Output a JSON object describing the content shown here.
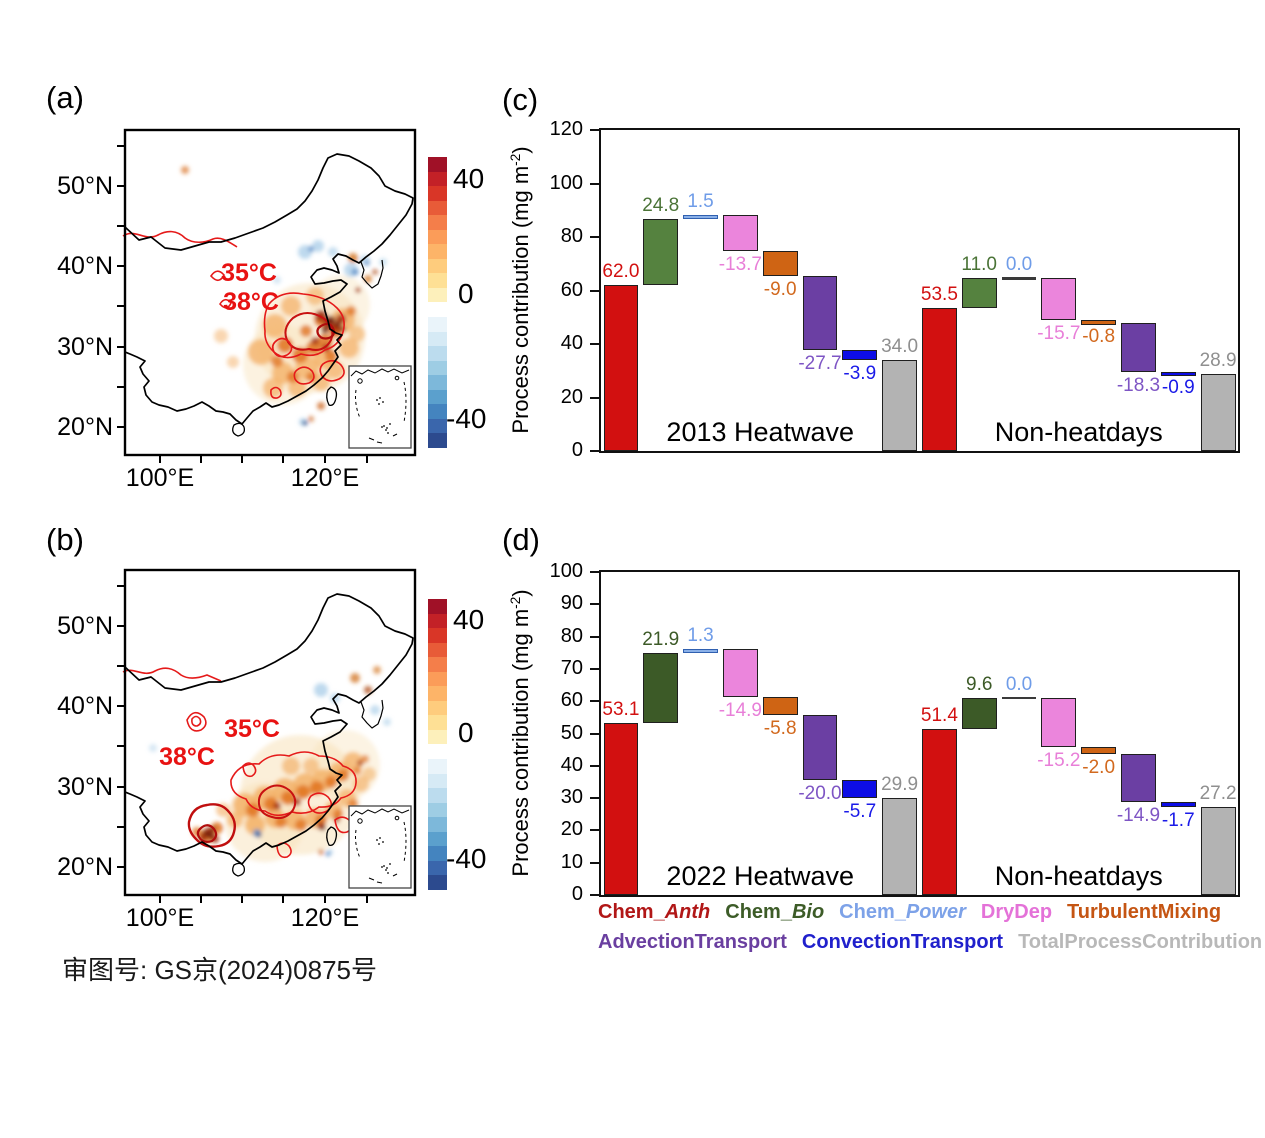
{
  "maps": {
    "a": {
      "panel_label": "(a)",
      "lat_labels": [
        "50°N",
        "40°N",
        "30°N",
        "20°N"
      ],
      "lon_labels": [
        "100°E",
        "120°E"
      ],
      "contour_labels": {
        "c35": "35°C",
        "c38": "38°C"
      },
      "colorbar": {
        "max": "40",
        "zero": "0",
        "min": "-40"
      }
    },
    "b": {
      "panel_label": "(b)",
      "lat_labels": [
        "50°N",
        "40°N",
        "30°N",
        "20°N"
      ],
      "lon_labels": [
        "100°E",
        "120°E"
      ],
      "contour_labels": {
        "c35": "35°C",
        "c38": "38°C"
      },
      "colorbar": {
        "max": "40",
        "zero": "0",
        "min": "-40"
      }
    }
  },
  "colorbar_colors": [
    "#a01127",
    "#c32127",
    "#d93627",
    "#e85b38",
    "#f47e4a",
    "#fb9c59",
    "#fdb468",
    "#fecc7d",
    "#fee095",
    "#fdf0bb",
    "#ffffff",
    "#eaf4fa",
    "#d6eaf5",
    "#bcdcee",
    "#9ecde4",
    "#7db8da",
    "#5ba0cd",
    "#4484bf",
    "#3a66ac",
    "#2c4a8e"
  ],
  "chart_data": [
    {
      "type": "waterfall-bar",
      "panel_label": "(c)",
      "ylabel": "Process contribution (mg m-2)",
      "ylabel_pre": "Process contribution (mg m",
      "ylabel_sup": "-2",
      "ylabel_post": ")",
      "ylim": [
        0,
        120
      ],
      "ytick_step": 20,
      "legend_position": "bottom",
      "groups": [
        {
          "label": "2013 Heatwave",
          "items": [
            {
              "name": "Chem_Anth",
              "label": "62.0",
              "value": 62.0,
              "kind": "start",
              "fill": "#d21010",
              "border": "#1f1f1f",
              "label_color": "#d21010"
            },
            {
              "name": "Chem_Bio",
              "label": "24.8",
              "value": 24.8,
              "kind": "delta",
              "fill": "#55823f",
              "border": "#1f1f1f",
              "label_color": "#4a7336"
            },
            {
              "name": "Chem_Power",
              "label": "1.5",
              "value": 1.5,
              "kind": "delta",
              "fill": "#8ab0e8",
              "border": "#3060b0",
              "label_color": "#6f9ce8"
            },
            {
              "name": "DryDep",
              "label": "-13.7",
              "value": -13.7,
              "kind": "delta",
              "fill": "#eb85dc",
              "border": "#1f1f1f",
              "label_color": "#e87fd8"
            },
            {
              "name": "TurbulentMixing",
              "label": "-9.0",
              "value": -9.0,
              "kind": "delta",
              "fill": "#cf6414",
              "border": "#1f1f1f",
              "label_color": "#d2691e"
            },
            {
              "name": "AdvectionTransport",
              "label": "-27.7",
              "value": -27.7,
              "kind": "delta",
              "fill": "#6b3fa3",
              "border": "#1f1f1f",
              "label_color": "#7e55c4"
            },
            {
              "name": "ConvectionTransport",
              "label": "-3.9",
              "value": -3.9,
              "kind": "delta",
              "fill": "#0d0de6",
              "border": "#1f1f1f",
              "label_color": "#1a1ae8"
            },
            {
              "name": "TotalProcessContribution",
              "label": "34.0",
              "value": 34.0,
              "kind": "total",
              "fill": "#b3b3b3",
              "border": "#1f1f1f",
              "label_color": "#8f8f8f"
            }
          ]
        },
        {
          "label": "Non-heatdays",
          "items": [
            {
              "name": "Chem_Anth",
              "label": "53.5",
              "value": 53.5,
              "kind": "start",
              "fill": "#d21010",
              "border": "#1f1f1f",
              "label_color": "#d21010"
            },
            {
              "name": "Chem_Bio",
              "label": "11.0",
              "value": 11.0,
              "kind": "delta",
              "fill": "#55823f",
              "border": "#1f1f1f",
              "label_color": "#4a7336"
            },
            {
              "name": "Chem_Power",
              "label": "0.0",
              "value": 0.0,
              "kind": "delta",
              "fill": "#8ab0e8",
              "border": "#3060b0",
              "label_color": "#6f9ce8"
            },
            {
              "name": "DryDep",
              "label": "-15.7",
              "value": -15.7,
              "kind": "delta",
              "fill": "#eb85dc",
              "border": "#1f1f1f",
              "label_color": "#e87fd8"
            },
            {
              "name": "TurbulentMixing",
              "label": "-0.8",
              "value": -0.8,
              "kind": "delta",
              "fill": "#cf6414",
              "border": "#1f1f1f",
              "label_color": "#d2691e"
            },
            {
              "name": "AdvectionTransport",
              "label": "-18.3",
              "value": -18.3,
              "kind": "delta",
              "fill": "#6b3fa3",
              "border": "#1f1f1f",
              "label_color": "#7e55c4"
            },
            {
              "name": "ConvectionTransport",
              "label": "-0.9",
              "value": -0.9,
              "kind": "delta",
              "fill": "#0d0de6",
              "border": "#1f1f1f",
              "label_color": "#1a1ae8"
            },
            {
              "name": "TotalProcessContribution",
              "label": "28.9",
              "value": 28.9,
              "kind": "total",
              "fill": "#b3b3b3",
              "border": "#1f1f1f",
              "label_color": "#8f8f8f"
            }
          ]
        }
      ]
    },
    {
      "type": "waterfall-bar",
      "panel_label": "(d)",
      "ylabel": "Process contribution (mg m-2)",
      "ylabel_pre": "Process contribution (mg m",
      "ylabel_sup": "-2",
      "ylabel_post": ")",
      "ylim": [
        0,
        100
      ],
      "ytick_step": 10,
      "legend_position": "bottom",
      "groups": [
        {
          "label": "2022 Heatwave",
          "items": [
            {
              "name": "Chem_Anth",
              "label": "53.1",
              "value": 53.1,
              "kind": "start",
              "fill": "#d21010",
              "border": "#1f1f1f",
              "label_color": "#d21010"
            },
            {
              "name": "Chem_Bio",
              "label": "21.9",
              "value": 21.9,
              "kind": "delta",
              "fill": "#3c5a27",
              "border": "#1f1f1f",
              "label_color": "#3c5a27"
            },
            {
              "name": "Chem_Power",
              "label": "1.3",
              "value": 1.3,
              "kind": "delta",
              "fill": "#8ab0e8",
              "border": "#3060b0",
              "label_color": "#6f9ce8"
            },
            {
              "name": "DryDep",
              "label": "-14.9",
              "value": -14.9,
              "kind": "delta",
              "fill": "#eb85dc",
              "border": "#1f1f1f",
              "label_color": "#e87fd8"
            },
            {
              "name": "TurbulentMixing",
              "label": "-5.8",
              "value": -5.8,
              "kind": "delta",
              "fill": "#cf6414",
              "border": "#1f1f1f",
              "label_color": "#d2691e"
            },
            {
              "name": "AdvectionTransport",
              "label": "-20.0",
              "value": -20.0,
              "kind": "delta",
              "fill": "#6b3fa3",
              "border": "#1f1f1f",
              "label_color": "#7e55c4"
            },
            {
              "name": "ConvectionTransport",
              "label": "-5.7",
              "value": -5.7,
              "kind": "delta",
              "fill": "#0d0de6",
              "border": "#1f1f1f",
              "label_color": "#1a1ae8"
            },
            {
              "name": "TotalProcessContribution",
              "label": "29.9",
              "value": 29.9,
              "kind": "total",
              "fill": "#b3b3b3",
              "border": "#1f1f1f",
              "label_color": "#8f8f8f"
            }
          ]
        },
        {
          "label": "Non-heatdays",
          "items": [
            {
              "name": "Chem_Anth",
              "label": "51.4",
              "value": 51.4,
              "kind": "start",
              "fill": "#d21010",
              "border": "#1f1f1f",
              "label_color": "#d21010"
            },
            {
              "name": "Chem_Bio",
              "label": "9.6",
              "value": 9.6,
              "kind": "delta",
              "fill": "#3c5a27",
              "border": "#1f1f1f",
              "label_color": "#3c5a27"
            },
            {
              "name": "Chem_Power",
              "label": "0.0",
              "value": 0.0,
              "kind": "delta",
              "fill": "#8ab0e8",
              "border": "#3060b0",
              "label_color": "#6f9ce8"
            },
            {
              "name": "DryDep",
              "label": "-15.2",
              "value": -15.2,
              "kind": "delta",
              "fill": "#eb85dc",
              "border": "#1f1f1f",
              "label_color": "#e87fd8"
            },
            {
              "name": "TurbulentMixing",
              "label": "-2.0",
              "value": -2.0,
              "kind": "delta",
              "fill": "#cf6414",
              "border": "#1f1f1f",
              "label_color": "#d2691e"
            },
            {
              "name": "AdvectionTransport",
              "label": "-14.9",
              "value": -14.9,
              "kind": "delta",
              "fill": "#6b3fa3",
              "border": "#1f1f1f",
              "label_color": "#7e55c4"
            },
            {
              "name": "ConvectionTransport",
              "label": "-1.7",
              "value": -1.7,
              "kind": "delta",
              "fill": "#0d0de6",
              "border": "#1f1f1f",
              "label_color": "#1a1ae8"
            },
            {
              "name": "TotalProcessContribution",
              "label": "27.2",
              "value": 27.2,
              "kind": "total",
              "fill": "#b3b3b3",
              "border": "#1f1f1f",
              "label_color": "#8f8f8f"
            }
          ]
        }
      ]
    }
  ],
  "legend": {
    "items": [
      {
        "pre": "Chem_",
        "italic": "Anth",
        "color": "#b11717"
      },
      {
        "pre": "Chem_",
        "italic": "Bio",
        "color": "#3d5c28"
      },
      {
        "pre": "Chem_",
        "italic": "Power",
        "color": "#7da2e8"
      },
      {
        "pre": "DryDep",
        "italic": "",
        "color": "#e472d8"
      },
      {
        "pre": "TurbulentMixing",
        "italic": "",
        "color": "#c55513"
      },
      {
        "pre": "AdvectionTransport",
        "italic": "",
        "color": "#6a3fa0"
      },
      {
        "pre": "ConvectionTransport",
        "italic": "",
        "color": "#2020cc"
      },
      {
        "pre": "TotalProcessContribution",
        "italic": "",
        "color": "#b8b8b8"
      }
    ]
  },
  "footer": {
    "license": "审图号: GS京(2024)0875号"
  }
}
